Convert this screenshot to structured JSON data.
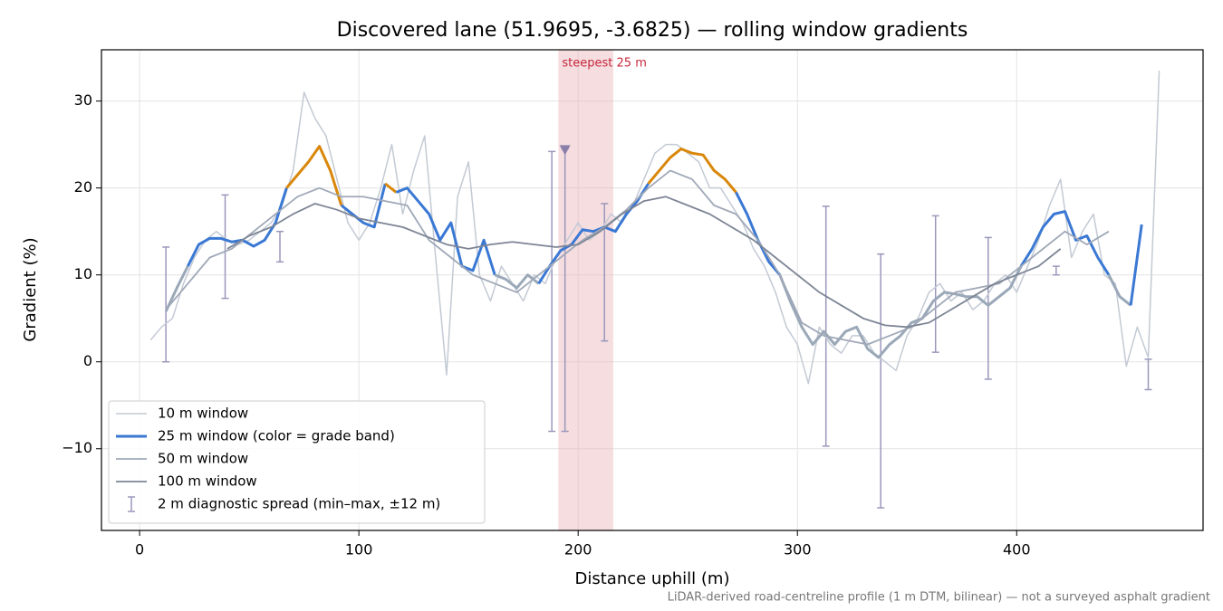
{
  "chart_data": {
    "type": "line",
    "title": "Discovered lane (51.9695, -3.6825) — rolling window gradients",
    "x_label": "Distance uphill (m)",
    "y_label": "Gradient (%)",
    "footnote": "LiDAR-derived road-centreline profile (1 m DTM, bilinear) — not a surveyed asphalt gradient",
    "xlim": [
      -17.4,
      485
    ],
    "ylim": [
      -19.4,
      35.9
    ],
    "xticks": [
      0,
      100,
      200,
      300,
      400
    ],
    "yticks": [
      {
        "value": -10,
        "label": "−10"
      },
      0,
      10,
      20,
      30
    ],
    "grid": true,
    "legend": "lower left",
    "series": [
      {
        "name": "10 m window",
        "color": "#c3cad4",
        "width": 1.5,
        "x": [
          5,
          10,
          15,
          20,
          25,
          30,
          35,
          40,
          45,
          50,
          55,
          60,
          65,
          70,
          75,
          80,
          85,
          90,
          95,
          100,
          105,
          110,
          115,
          120,
          125,
          130,
          135,
          140,
          145,
          150,
          155,
          160,
          165,
          170,
          175,
          180,
          185,
          190,
          195,
          200,
          205,
          210,
          215,
          220,
          225,
          230,
          235,
          240,
          245,
          250,
          255,
          260,
          265,
          270,
          275,
          280,
          285,
          290,
          295,
          300,
          305,
          310,
          315,
          320,
          325,
          330,
          335,
          340,
          345,
          350,
          355,
          360,
          365,
          370,
          375,
          380,
          385,
          390,
          395,
          400,
          405,
          410,
          415,
          420,
          425,
          430,
          435,
          440,
          445,
          450,
          455,
          460,
          465
        ],
        "values": [
          2.5,
          4,
          5,
          9,
          12,
          14,
          15,
          14,
          13.5,
          14,
          15,
          16,
          18,
          22,
          31,
          28,
          26,
          21,
          16,
          14,
          16,
          20,
          25,
          17,
          22,
          26,
          12,
          -1.5,
          19,
          23,
          10,
          7,
          11,
          9,
          7,
          10,
          9,
          12,
          14,
          16,
          14,
          15,
          17,
          16,
          18,
          21,
          24,
          25,
          25,
          24,
          23,
          20,
          20,
          18,
          16,
          13,
          11,
          8,
          4,
          2,
          -2.5,
          4,
          2,
          1,
          3,
          3,
          1,
          0,
          -1,
          3,
          5,
          8,
          9,
          7,
          8,
          6,
          7,
          9,
          10,
          8,
          11,
          14,
          18,
          21,
          12,
          15,
          17,
          10,
          9,
          -0.5,
          4,
          0.5,
          33.5
        ]
      },
      {
        "name": "25 m window (color = grade band)",
        "color": "#3a78d4",
        "width": 3,
        "bands": [
          {
            "below": 10,
            "color": "#9aa8b8"
          },
          {
            "below": 20,
            "color": "#3a78d4"
          },
          {
            "color": "#d9870a"
          }
        ],
        "x": [
          12,
          17,
          22,
          27,
          32,
          37,
          42,
          47,
          52,
          57,
          62,
          67,
          72,
          77,
          82,
          87,
          92,
          97,
          102,
          107,
          112,
          117,
          122,
          127,
          132,
          137,
          142,
          147,
          152,
          157,
          162,
          167,
          172,
          177,
          182,
          187,
          192,
          197,
          202,
          207,
          212,
          217,
          222,
          227,
          232,
          237,
          242,
          247,
          252,
          257,
          262,
          267,
          272,
          277,
          282,
          287,
          292,
          297,
          302,
          307,
          312,
          317,
          322,
          327,
          332,
          337,
          342,
          347,
          352,
          357,
          362,
          367,
          372,
          377,
          382,
          387,
          392,
          397,
          402,
          407,
          412,
          417,
          422,
          427,
          432,
          437,
          442,
          447,
          452,
          457
        ],
        "values": [
          5.8,
          8.5,
          11,
          13.5,
          14.2,
          14.2,
          13.8,
          14,
          13.3,
          14,
          16,
          20,
          21.5,
          23,
          24.8,
          22,
          18,
          17,
          16,
          15.5,
          20.5,
          19.5,
          20,
          18.5,
          17,
          14,
          16,
          11,
          10.5,
          14,
          10,
          9.5,
          8.5,
          10,
          9,
          11,
          12.8,
          13.5,
          15.2,
          15,
          15.5,
          15,
          17,
          18.5,
          20.5,
          22,
          23.5,
          24.5,
          24,
          23.8,
          22,
          21,
          19.5,
          17,
          14,
          11.5,
          10,
          6.8,
          4,
          2,
          3.5,
          2,
          3.5,
          4,
          1.5,
          0.5,
          2,
          3,
          4.5,
          5,
          7,
          8,
          7.8,
          7.5,
          7.5,
          6.5,
          7.5,
          8.5,
          11,
          13,
          15.5,
          17,
          17.3,
          14,
          14.5,
          12,
          10,
          7.5,
          6.5,
          15.8
        ]
      },
      {
        "name": "50 m window",
        "color": "#a0a8b8",
        "width": 1.8,
        "x": [
          12,
          22,
          32,
          42,
          52,
          62,
          72,
          82,
          92,
          102,
          112,
          122,
          132,
          142,
          152,
          162,
          172,
          182,
          192,
          202,
          212,
          222,
          232,
          242,
          252,
          262,
          272,
          282,
          292,
          302,
          312,
          322,
          332,
          342,
          352,
          362,
          372,
          382,
          392,
          402,
          412,
          422,
          432,
          442
        ],
        "values": [
          6,
          9,
          12,
          13,
          15,
          17,
          19,
          20,
          19,
          19,
          18.5,
          18,
          14,
          12,
          10,
          9,
          8,
          10,
          12,
          14,
          15.5,
          17.5,
          20,
          22,
          21,
          18,
          17,
          14,
          10,
          4.5,
          3,
          2.5,
          2,
          3,
          4,
          6,
          8,
          8.5,
          9,
          11,
          13,
          15,
          13.5,
          15
        ]
      },
      {
        "name": "100 m window",
        "color": "#7d8595",
        "width": 1.8,
        "x": [
          40,
          50,
          60,
          70,
          80,
          90,
          100,
          110,
          120,
          130,
          140,
          150,
          160,
          170,
          180,
          190,
          200,
          210,
          220,
          230,
          240,
          250,
          260,
          270,
          280,
          290,
          300,
          310,
          320,
          330,
          340,
          350,
          360,
          370,
          380,
          390,
          400,
          410,
          420
        ],
        "values": [
          13,
          14.5,
          15.5,
          17,
          18.2,
          17.5,
          16.5,
          16,
          15.5,
          14.5,
          13.5,
          13,
          13.5,
          13.8,
          13.5,
          13.2,
          13.5,
          15,
          17,
          18.5,
          19,
          18,
          17,
          15.5,
          14,
          12,
          10,
          8,
          6.5,
          5,
          4.2,
          4,
          4.5,
          6,
          7.5,
          9,
          10,
          11,
          13
        ]
      }
    ],
    "spread": {
      "name": "2 m diagnostic spread (min–max, ±12 m)",
      "color": "#9a98bb",
      "x": [
        12,
        39,
        64,
        188,
        194,
        212,
        313,
        338,
        363,
        387,
        418,
        460
      ],
      "min": [
        0,
        7.3,
        11.5,
        -8,
        -8,
        2.4,
        -9.7,
        -16.8,
        1.1,
        -2,
        10,
        -3.2
      ],
      "max": [
        13.2,
        19.2,
        15,
        24.2,
        24.5,
        18.2,
        17.9,
        12.4,
        16.8,
        14.3,
        11,
        0.3
      ]
    },
    "steepest": {
      "label": "steepest 25 m",
      "span": [
        191,
        216
      ],
      "color": "#e8b4ba",
      "label_color": "#c8283c",
      "marker_x": 194,
      "marker_y": 24.3,
      "marker_color": "#8a7fa8"
    }
  }
}
